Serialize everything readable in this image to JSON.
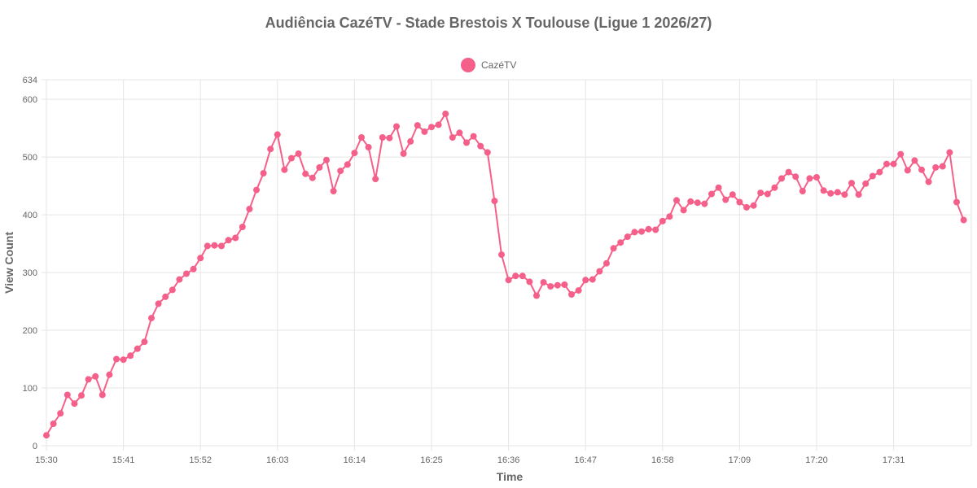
{
  "chart_data": {
    "type": "line",
    "title": "Audiência CazéTV - Stade Brestois X Toulouse (Ligue 1 2026/27)",
    "xlabel": "Time",
    "ylabel": "View Count",
    "ylim": [
      0,
      634
    ],
    "y_ticks": [
      0,
      100,
      200,
      300,
      400,
      500,
      600,
      634
    ],
    "x_tick_labels": [
      "15:30",
      "15:41",
      "15:52",
      "16:03",
      "16:14",
      "16:25",
      "16:36",
      "16:47",
      "16:58",
      "17:09",
      "17:20",
      "17:31"
    ],
    "x_start": "15:30",
    "x_interval_minutes": 1,
    "grid": true,
    "legend_position": "top-center",
    "series": [
      {
        "name": "CazéTV",
        "color": "#f5608a",
        "values": [
          18,
          38,
          56,
          88,
          73,
          87,
          115,
          120,
          88,
          123,
          150,
          149,
          156,
          168,
          180,
          221,
          246,
          258,
          270,
          288,
          298,
          306,
          325,
          346,
          347,
          346,
          356,
          360,
          379,
          410,
          443,
          472,
          514,
          539,
          478,
          498,
          506,
          471,
          464,
          482,
          495,
          441,
          476,
          487,
          507,
          534,
          517,
          462,
          534,
          533,
          553,
          506,
          527,
          555,
          544,
          552,
          556,
          575,
          534,
          542,
          525,
          536,
          519,
          508,
          424,
          331,
          287,
          294,
          294,
          284,
          260,
          283,
          276,
          278,
          279,
          262,
          269,
          287,
          288,
          302,
          316,
          342,
          352,
          362,
          370,
          371,
          375,
          374,
          389,
          397,
          425,
          408,
          423,
          421,
          419,
          436,
          447,
          426,
          435,
          422,
          413,
          416,
          438,
          436,
          447,
          463,
          474,
          466,
          441,
          463,
          465,
          442,
          437,
          439,
          435,
          455,
          435,
          454,
          467,
          474,
          488,
          488,
          505,
          477,
          494,
          478,
          457,
          482,
          484,
          508,
          422,
          391
        ]
      }
    ]
  }
}
